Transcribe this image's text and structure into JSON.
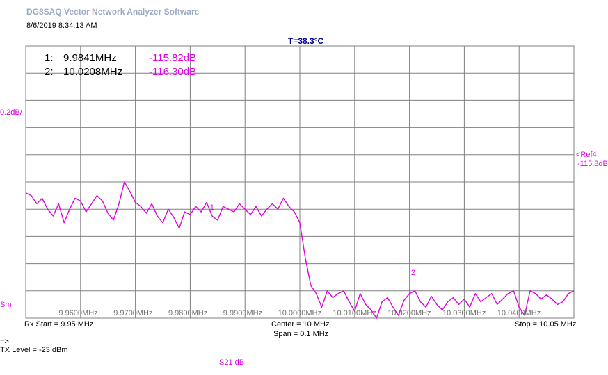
{
  "app": {
    "title": "DG8SAQ Vector Network Analyzer Software",
    "timestamp": "8/6/2019   8:34:13 AM",
    "temperature": "T=38.3°C"
  },
  "markers": [
    {
      "index": "1:",
      "freq": "9.9841MHz",
      "level": "-115.82dB"
    },
    {
      "index": "2:",
      "freq": "10.0208MHz",
      "level": "-116.30dB"
    }
  ],
  "labels": {
    "scale": "0.2dB/",
    "ref_marker": "<Ref4",
    "ref_value": "-115.8dB",
    "sm": "Sm",
    "rx_start": "Rx Start = 9.95 MHz",
    "center": "Center = 10 MHz",
    "span": "Span = 0.1 MHz",
    "stop": "Stop = 10.05 MHz",
    "arrow": "=>",
    "tx_level": "TX Level = -23 dBm",
    "trace_name": "S21  dB"
  },
  "colors": {
    "trace": "#e000e0",
    "grid": "#808080",
    "title": "#9aa9c4",
    "temperature": "#000099"
  },
  "chart_data": {
    "type": "line",
    "xlabel": "",
    "ylabel": "",
    "xlim": [
      9.95,
      10.05
    ],
    "ylim": [
      -116.6,
      -114.6
    ],
    "ref_level": -115.8,
    "scale_per_div": 0.2,
    "grid": true,
    "x_tick_labels": [
      "9.9600MHz",
      "9.9700MHz",
      "9.9800MHz",
      "9.9900MHz",
      "10.0000MHz",
      "10.0100MHz",
      "10.0200MHz",
      "10.0300MHz",
      "10.0400MHz"
    ],
    "x_ticks": [
      9.96,
      9.97,
      9.98,
      9.99,
      10.0,
      10.01,
      10.02,
      10.03,
      10.04
    ],
    "series": [
      {
        "name": "S21  dB",
        "x": [
          9.95,
          9.951,
          9.952,
          9.953,
          9.954,
          9.955,
          9.956,
          9.957,
          9.958,
          9.959,
          9.96,
          9.961,
          9.962,
          9.963,
          9.964,
          9.965,
          9.966,
          9.967,
          9.968,
          9.969,
          9.97,
          9.971,
          9.972,
          9.973,
          9.974,
          9.975,
          9.976,
          9.977,
          9.978,
          9.979,
          9.98,
          9.981,
          9.982,
          9.983,
          9.984,
          9.985,
          9.986,
          9.987,
          9.988,
          9.989,
          9.99,
          9.991,
          9.992,
          9.993,
          9.994,
          9.995,
          9.996,
          9.997,
          9.998,
          9.999,
          10.0,
          10.001,
          10.002,
          10.003,
          10.004,
          10.005,
          10.006,
          10.007,
          10.008,
          10.009,
          10.01,
          10.011,
          10.012,
          10.013,
          10.014,
          10.015,
          10.016,
          10.017,
          10.018,
          10.019,
          10.02,
          10.021,
          10.022,
          10.023,
          10.024,
          10.025,
          10.026,
          10.027,
          10.028,
          10.029,
          10.03,
          10.031,
          10.032,
          10.033,
          10.034,
          10.035,
          10.036,
          10.037,
          10.038,
          10.039,
          10.04,
          10.041,
          10.042,
          10.043,
          10.044,
          10.045,
          10.046,
          10.047,
          10.048,
          10.049,
          10.05
        ],
        "y": [
          -115.68,
          -115.7,
          -115.76,
          -115.72,
          -115.8,
          -115.85,
          -115.76,
          -115.9,
          -115.8,
          -115.72,
          -115.74,
          -115.82,
          -115.76,
          -115.7,
          -115.74,
          -115.83,
          -115.88,
          -115.76,
          -115.6,
          -115.67,
          -115.75,
          -115.78,
          -115.83,
          -115.76,
          -115.85,
          -115.9,
          -115.8,
          -115.86,
          -115.94,
          -115.82,
          -115.84,
          -115.78,
          -115.82,
          -115.75,
          -115.85,
          -115.88,
          -115.78,
          -115.8,
          -115.82,
          -115.76,
          -115.8,
          -115.84,
          -115.78,
          -115.85,
          -115.8,
          -115.76,
          -115.8,
          -115.72,
          -115.78,
          -115.82,
          -115.9,
          -116.16,
          -116.36,
          -116.42,
          -116.52,
          -116.4,
          -116.45,
          -116.42,
          -116.4,
          -116.48,
          -116.55,
          -116.42,
          -116.5,
          -116.54,
          -116.6,
          -116.48,
          -116.45,
          -116.52,
          -116.58,
          -116.47,
          -116.42,
          -116.4,
          -116.48,
          -116.52,
          -116.44,
          -116.5,
          -116.54,
          -116.48,
          -116.45,
          -116.5,
          -116.46,
          -116.52,
          -116.42,
          -116.48,
          -116.45,
          -116.42,
          -116.5,
          -116.46,
          -116.42,
          -116.4,
          -116.52,
          -116.58,
          -116.4,
          -116.42,
          -116.46,
          -116.43,
          -116.46,
          -116.5,
          -116.48,
          -116.42,
          -116.4
        ]
      }
    ],
    "markers": [
      {
        "label": "1",
        "x": 9.9841,
        "y": -115.82
      },
      {
        "label": "2",
        "x": 10.0208,
        "y": -116.3
      }
    ]
  }
}
